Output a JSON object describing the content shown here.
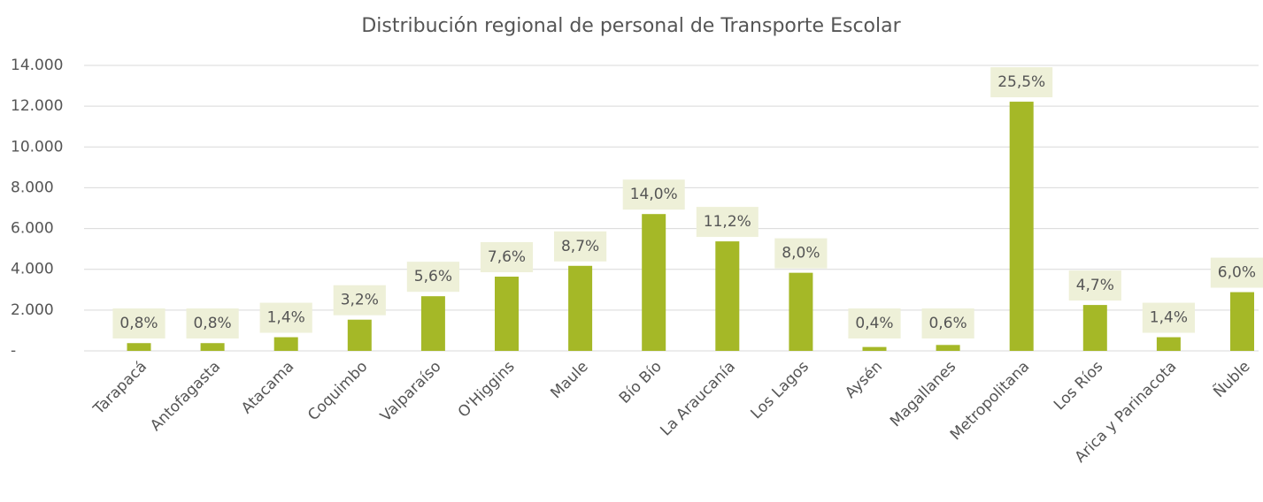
{
  "chart_data": {
    "type": "bar",
    "title": "Distribución regional de personal de Transporte Escolar",
    "categories": [
      "Tarapacá",
      "Antofagasta",
      "Atacama",
      "Coquimbo",
      "Valparaíso",
      "O'Higgins",
      "Maule",
      "Bío Bío",
      "La Araucanía",
      "Los Lagos",
      "Aysén",
      "Magallanes",
      "Metropolitana",
      "Los Ríos",
      "Arica y Parinacota",
      "Ñuble"
    ],
    "values": [
      380,
      380,
      670,
      1530,
      2680,
      3640,
      4170,
      6710,
      5370,
      3830,
      190,
      290,
      12220,
      2250,
      670,
      2880
    ],
    "data_labels": [
      "0,8%",
      "0,8%",
      "1,4%",
      "3,2%",
      "5,6%",
      "7,6%",
      "8,7%",
      "14,0%",
      "11,2%",
      "8,0%",
      "0,4%",
      "0,6%",
      "25,5%",
      "4,7%",
      "1,4%",
      "6,0%"
    ],
    "color": "#a5b827",
    "ylim": [
      0,
      14000
    ],
    "yticks": [
      {
        "value": 0,
        "label": "-"
      },
      {
        "value": 2000,
        "label": "2.000"
      },
      {
        "value": 4000,
        "label": "4.000"
      },
      {
        "value": 6000,
        "label": "6.000"
      },
      {
        "value": 8000,
        "label": "8.000"
      },
      {
        "value": 10000,
        "label": "10.000"
      },
      {
        "value": 12000,
        "label": "12.000"
      },
      {
        "value": 14000,
        "label": "14.000"
      }
    ],
    "grid": true
  }
}
